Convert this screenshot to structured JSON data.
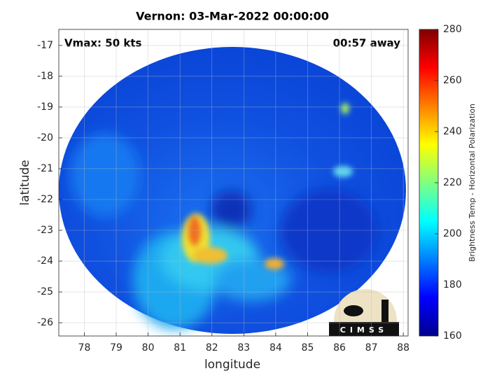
{
  "chart_data": {
    "type": "image",
    "title": "Vernon: 03-Mar-2022 00:00:00",
    "xlabel": "longitude",
    "ylabel": "latitude",
    "xlim": [
      77.2,
      88.15
    ],
    "ylim": [
      -26.43,
      -16.48
    ],
    "xticks": [
      78,
      79,
      80,
      81,
      82,
      83,
      84,
      85,
      86,
      87,
      88
    ],
    "yticks": [
      -26,
      -25,
      -24,
      -23,
      -22,
      -21,
      -20,
      -19,
      -18,
      -17
    ],
    "grid": true,
    "annotations": [
      "Vmax: 50 kts",
      "00:57 away"
    ],
    "logo": "CIMSS",
    "colorbar": {
      "label": "Brightness Temp - Horizontal Polarization",
      "colormap": "jet",
      "clim": [
        160,
        280
      ],
      "ticks": [
        160,
        180,
        200,
        220,
        240,
        260,
        280
      ]
    }
  }
}
